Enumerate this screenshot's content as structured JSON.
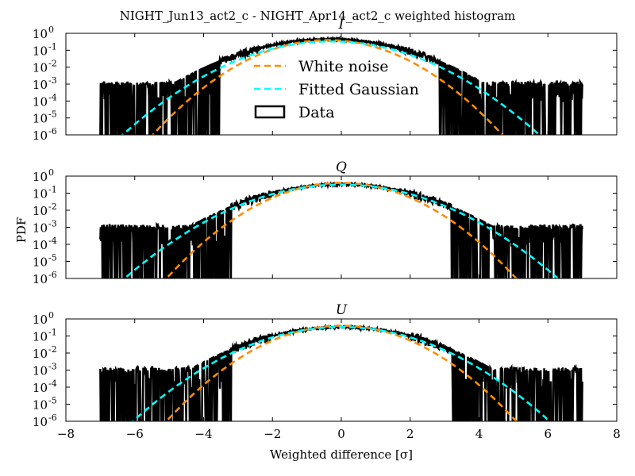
{
  "chart_data": {
    "type": "line",
    "title": "NIGHT_Jun13_act2_c - NIGHT_Apr14_act2_c weighted histogram",
    "xlabel": "Weighted difference [σ]",
    "ylabel": "PDF",
    "xlim": [
      -8,
      8
    ],
    "ylim": [
      1e-06,
      1
    ],
    "yscale": "log",
    "x_ticks": [
      "−8",
      "−6",
      "−4",
      "−2",
      "0",
      "2",
      "4",
      "6",
      "8"
    ],
    "y_ticks": [
      {
        "base": "10",
        "exp": "-6"
      },
      {
        "base": "10",
        "exp": "-5"
      },
      {
        "base": "10",
        "exp": "-4"
      },
      {
        "base": "10",
        "exp": "-3"
      },
      {
        "base": "10",
        "exp": "-2"
      },
      {
        "base": "10",
        "exp": "-1"
      },
      {
        "base": "10",
        "exp": "0"
      }
    ],
    "legend": {
      "placement": "upper-center (first panel)",
      "entries": [
        {
          "label": "White noise",
          "color": "#ff8c00",
          "style": "dashed"
        },
        {
          "label": "Fitted Gaussian",
          "color": "#00ffff",
          "style": "dashed"
        },
        {
          "label": "Data",
          "color": "#000000",
          "style": "box"
        }
      ]
    },
    "panels": [
      {
        "subtitle": "I",
        "white_noise": {
          "mean": -0.4,
          "sigma": 1.0
        },
        "fitted_gaussian": {
          "mean": -0.3,
          "sigma": 1.2
        },
        "data": {
          "mean": -0.35,
          "sigma": 1.3,
          "range": [
            -7.0,
            7.0
          ],
          "peak": 0.45
        }
      },
      {
        "subtitle": "Q",
        "white_noise": {
          "mean": 0.0,
          "sigma": 1.0
        },
        "fitted_gaussian": {
          "mean": 0.0,
          "sigma": 1.25
        },
        "data": {
          "mean": 0.0,
          "sigma": 1.3,
          "range": [
            -7.0,
            7.0
          ],
          "peak": 0.33
        }
      },
      {
        "subtitle": "U",
        "white_noise": {
          "mean": 0.0,
          "sigma": 1.0
        },
        "fitted_gaussian": {
          "mean": 0.0,
          "sigma": 1.2
        },
        "data": {
          "mean": 0.0,
          "sigma": 1.3,
          "range": [
            -7.0,
            7.0
          ],
          "peak": 0.33
        }
      }
    ]
  }
}
